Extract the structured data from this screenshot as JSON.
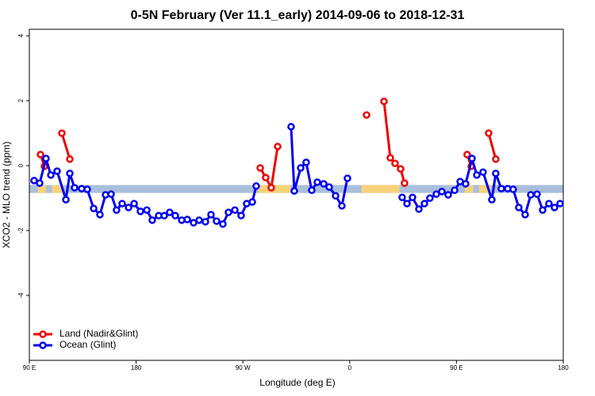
{
  "chart_data": {
    "type": "line",
    "title": "0-5N February (Ver 11.1_early)   2014-09-06 to 2018-12-31",
    "x_label": "Longitude (deg E)",
    "y_label": "XCO2 - MLO trend (ppm)",
    "xlim": [
      90,
      540
    ],
    "ylim": [
      -6,
      4.2
    ],
    "xticks": [
      {
        "value": 90,
        "label": "90 E"
      },
      180,
      {
        "value": 270,
        "label": "90 W"
      },
      {
        "value": 360,
        "label": "0"
      },
      {
        "value": 450,
        "label": "90 E"
      },
      {
        "value": 540,
        "label": "180"
      }
    ],
    "yticks": [
      -4,
      -2,
      0,
      2,
      4
    ],
    "legend": "bottom-left",
    "band": {
      "y": -0.72,
      "color": "#a9bfdc",
      "land_color": "#f6d27a",
      "land": [
        [
          97,
          104
        ],
        [
          109,
          119
        ],
        [
          283,
          310
        ],
        [
          370,
          402
        ],
        [
          457,
          464
        ],
        [
          469,
          479
        ]
      ]
    },
    "series": [
      {
        "name": "Land (Nadir&Glint)",
        "color": "#ee0000",
        "x": [
          99.4,
          102.7,
          null,
          117.4,
          124.1,
          null,
          284.6,
          289.2,
          293.9,
          299.3,
          null,
          374.2,
          null,
          388.9,
          394.2,
          398.2,
          402.9,
          406.2,
          null,
          459.0,
          462.4,
          null,
          477.1,
          483.1
        ],
        "values": [
          0.34,
          -0.02,
          null,
          1.0,
          0.2,
          null,
          -0.07,
          -0.37,
          -0.68,
          0.59,
          null,
          1.56,
          null,
          1.98,
          0.24,
          0.07,
          -0.1,
          -0.54,
          null,
          0.34,
          -0.02,
          null,
          1.0,
          0.2
        ]
      },
      {
        "name": "Ocean (Glint)",
        "color": "#0000ee",
        "x": [
          94.0,
          98.7,
          104.0,
          108.1,
          113.4,
          120.8,
          124.1,
          128.1,
          134.1,
          138.8,
          144.2,
          149.5,
          154.2,
          158.9,
          163.5,
          168.2,
          173.6,
          178.3,
          183.6,
          189.0,
          193.6,
          199.0,
          203.7,
          208.3,
          213.0,
          218.4,
          223.1,
          228.4,
          233.1,
          238.4,
          243.1,
          247.8,
          253.1,
          257.8,
          263.2,
          268.5,
          273.2,
          277.9,
          281.2,
          null,
          310.6,
          313.3,
          318.7,
          323.3,
          328.0,
          332.7,
          338.1,
          342.7,
          348.1,
          353.4,
          358.1,
          null,
          404.2,
          408.3,
          412.9,
          418.3,
          423.0,
          427.6,
          433.0,
          437.7,
          443.0,
          448.4,
          453.1,
          457.7,
          463.1,
          467.1,
          472.4,
          479.8,
          483.1,
          487.8,
          493.2,
          497.8,
          502.5,
          507.9,
          512.6,
          517.9,
          522.6,
          527.9,
          532.6,
          537.3
        ],
        "values": [
          -0.46,
          -0.54,
          0.22,
          -0.29,
          -0.17,
          -1.05,
          -0.24,
          -0.68,
          -0.71,
          -0.73,
          -1.32,
          -1.51,
          -0.9,
          -0.88,
          -1.37,
          -1.17,
          -1.29,
          -1.17,
          -1.41,
          -1.37,
          -1.68,
          -1.54,
          -1.54,
          -1.44,
          -1.54,
          -1.68,
          -1.66,
          -1.76,
          -1.68,
          -1.73,
          -1.51,
          -1.71,
          -1.8,
          -1.44,
          -1.37,
          -1.54,
          -1.17,
          -1.12,
          -0.63,
          null,
          1.2,
          -0.78,
          -0.07,
          0.1,
          -0.76,
          -0.51,
          -0.56,
          -0.66,
          -0.93,
          -1.24,
          -0.39,
          null,
          -0.98,
          -1.17,
          -0.98,
          -1.34,
          -1.17,
          -1.0,
          -0.88,
          -0.8,
          -0.9,
          -0.76,
          -0.49,
          -0.56,
          0.22,
          -0.29,
          -0.2,
          -1.05,
          -0.24,
          -0.71,
          -0.71,
          -0.73,
          -1.29,
          -1.51,
          -0.9,
          -0.88,
          -1.37,
          -1.17,
          -1.29,
          -1.17
        ]
      }
    ]
  }
}
